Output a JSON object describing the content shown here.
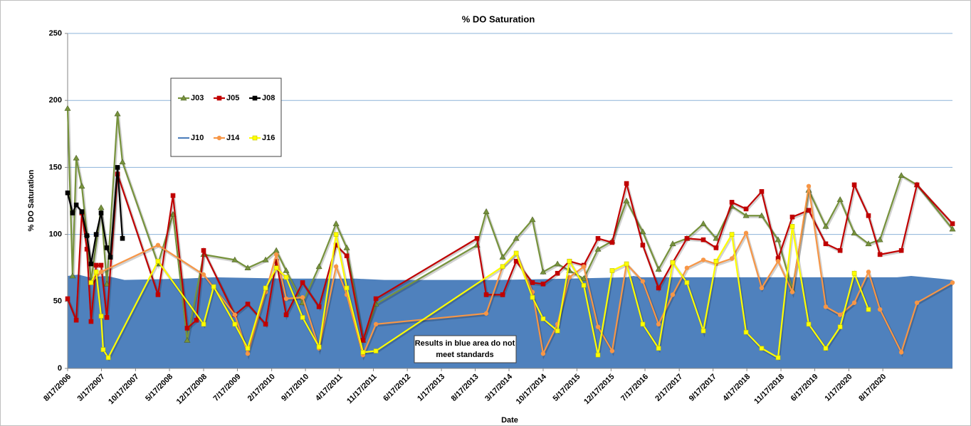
{
  "chart_data": {
    "type": "line",
    "title": "% DO Saturation",
    "y_label": "% DO Saturation",
    "x_label": "Date",
    "ylim": [
      0,
      250
    ],
    "yticks": [
      0,
      50,
      100,
      150,
      200,
      250
    ],
    "grid": true,
    "xlim": [
      38946,
      44497
    ],
    "xticks": [
      {
        "value": 38946,
        "label": "8/17/2006"
      },
      {
        "value": 39158,
        "label": "3/17/2007"
      },
      {
        "value": 39372,
        "label": "10/17/2007"
      },
      {
        "value": 39585,
        "label": "5/17/2008"
      },
      {
        "value": 39799,
        "label": "12/17/2008"
      },
      {
        "value": 40011,
        "label": "7/17/2009"
      },
      {
        "value": 40226,
        "label": "2/17/2010"
      },
      {
        "value": 40438,
        "label": "9/17/2010"
      },
      {
        "value": 40650,
        "label": "4/17/2011"
      },
      {
        "value": 40864,
        "label": "11/17/2011"
      },
      {
        "value": 41077,
        "label": "6/17/2012"
      },
      {
        "value": 41291,
        "label": "1/17/2013"
      },
      {
        "value": 41503,
        "label": "8/17/2013"
      },
      {
        "value": 41715,
        "label": "3/17/2014"
      },
      {
        "value": 41929,
        "label": "10/17/2014"
      },
      {
        "value": 42141,
        "label": "5/17/2015"
      },
      {
        "value": 42355,
        "label": "12/17/2015"
      },
      {
        "value": 42568,
        "label": "7/17/2016"
      },
      {
        "value": 42783,
        "label": "2/17/2017"
      },
      {
        "value": 42995,
        "label": "9/17/2017"
      },
      {
        "value": 43207,
        "label": "4/17/2018"
      },
      {
        "value": 43421,
        "label": "11/17/2018"
      },
      {
        "value": 43633,
        "label": "6/17/2019"
      },
      {
        "value": 43847,
        "label": "1/17/2020"
      },
      {
        "value": 44060,
        "label": "8/17/2020"
      }
    ],
    "standard_area": {
      "color": "#4f81bd",
      "x": [
        38946,
        39013,
        39080,
        39192,
        39303,
        39683,
        39862,
        40308,
        40755,
        40933,
        41648,
        42094,
        42452,
        42496,
        42541,
        42988,
        43434,
        43881,
        44149,
        44238,
        44417,
        44497
      ],
      "values": [
        69,
        70,
        68,
        69,
        66,
        67,
        68,
        67,
        67,
        66,
        66,
        67,
        68,
        69,
        68,
        68,
        68,
        68,
        68,
        69,
        67,
        66
      ]
    },
    "annotation": [
      "Results in blue area do not",
      "meet standards"
    ],
    "series": [
      {
        "name": "J03",
        "color": "#77933c",
        "marker": "triangle",
        "x": [
          38946,
          38977,
          39000,
          39035,
          39067,
          39093,
          39156,
          39192,
          39259,
          39290,
          39513,
          39607,
          39696,
          39799,
          39995,
          40076,
          40188,
          40255,
          40317,
          40420,
          40523,
          40630,
          40697,
          40799,
          40880,
          41514,
          41572,
          41675,
          41760,
          41862,
          41929,
          42019,
          42094,
          42184,
          42273,
          42362,
          42452,
          42554,
          42653,
          42742,
          42831,
          42934,
          43014,
          43113,
          43202,
          43300,
          43403,
          43492,
          43595,
          43702,
          43792,
          43881,
          43970,
          44042,
          44176,
          44274,
          44497
        ],
        "values": [
          194,
          69,
          157,
          136,
          100,
          65,
          120,
          63,
          190,
          154,
          78,
          115,
          21,
          85,
          81,
          75,
          81,
          88,
          73,
          49,
          76,
          108,
          90,
          21,
          48,
          92,
          117,
          83,
          97,
          111,
          72,
          78,
          73,
          67,
          89,
          95,
          125,
          102,
          74,
          93,
          97,
          108,
          97,
          121,
          114,
          114,
          96,
          59,
          133,
          106,
          126,
          101,
          93,
          96,
          144,
          137,
          104
        ]
      },
      {
        "name": "J05",
        "color": "#c00000",
        "marker": "square",
        "x": [
          38946,
          39000,
          39035,
          39067,
          39093,
          39125,
          39156,
          39192,
          39259,
          39513,
          39607,
          39696,
          39754,
          39799,
          39995,
          40076,
          40188,
          40255,
          40317,
          40420,
          40523,
          40630,
          40697,
          40799,
          40880,
          41514,
          41572,
          41675,
          41760,
          41862,
          41929,
          42019,
          42094,
          42184,
          42273,
          42362,
          42452,
          42554,
          42653,
          42742,
          42831,
          42934,
          43014,
          43113,
          43202,
          43300,
          43403,
          43492,
          43595,
          43702,
          43792,
          43881,
          43970,
          44042,
          44176,
          44274,
          44497
        ],
        "values": [
          52,
          36,
          116,
          89,
          35,
          77,
          77,
          38,
          145,
          55,
          129,
          30,
          36,
          88,
          40,
          48,
          33,
          80,
          40,
          64,
          46,
          92,
          84,
          21,
          52,
          97,
          55,
          55,
          80,
          64,
          63,
          71,
          80,
          77,
          97,
          94,
          138,
          92,
          60,
          79,
          97,
          96,
          90,
          124,
          119,
          132,
          82,
          113,
          118,
          93,
          88,
          137,
          114,
          85,
          88,
          137,
          108
        ]
      },
      {
        "name": "J08",
        "color": "#000000",
        "marker": "square",
        "x": [
          38946,
          38977,
          39000,
          39035,
          39067,
          39093,
          39125,
          39156,
          39192,
          39214,
          39259,
          39290
        ],
        "values": [
          131,
          116,
          122,
          117,
          99,
          78,
          100,
          116,
          90,
          83,
          150,
          97
        ]
      },
      {
        "name": "J10",
        "color": "#4f81bd",
        "marker": "none",
        "x": [],
        "values": []
      },
      {
        "name": "J14",
        "color": "#f79646",
        "marker": "circle",
        "x": [
          39093,
          39156,
          39513,
          39799,
          39995,
          40076,
          40188,
          40255,
          40317,
          40420,
          40523,
          40630,
          40697,
          40799,
          40880,
          41572,
          41675,
          41760,
          41862,
          41929,
          42019,
          42094,
          42184,
          42273,
          42362,
          42452,
          42554,
          42653,
          42742,
          42831,
          42934,
          43014,
          43113,
          43202,
          43300,
          43403,
          43492,
          43595,
          43702,
          43792,
          43881,
          43970,
          44042,
          44176,
          44274,
          44497
        ],
        "values": [
          64,
          72,
          92,
          70,
          40,
          11,
          57,
          85,
          52,
          53,
          15,
          76,
          55,
          10,
          33,
          41,
          76,
          86,
          57,
          11,
          33,
          68,
          76,
          31,
          13,
          78,
          65,
          33,
          55,
          75,
          81,
          78,
          82,
          101,
          60,
          80,
          57,
          136,
          46,
          40,
          49,
          72,
          44,
          12,
          49,
          64
        ]
      },
      {
        "name": "J16",
        "color": "#ffff00",
        "marker": "square",
        "x": [
          39093,
          39125,
          39156,
          39169,
          39201,
          39513,
          39799,
          39862,
          39995,
          40076,
          40188,
          40255,
          40317,
          40420,
          40523,
          40630,
          40697,
          40799,
          40880,
          41675,
          41760,
          41862,
          41929,
          42019,
          42094,
          42184,
          42273,
          42362,
          42452,
          42554,
          42653,
          42742,
          42831,
          42934,
          43014,
          43113,
          43202,
          43300,
          43403,
          43492,
          43595,
          43702,
          43792,
          43881,
          43970
        ],
        "values": [
          64,
          72,
          39,
          14,
          8,
          80,
          33,
          61,
          33,
          15,
          60,
          75,
          68,
          38,
          16,
          100,
          60,
          12,
          13,
          76,
          86,
          53,
          37,
          28,
          80,
          62,
          10,
          73,
          78,
          33,
          15,
          79,
          64,
          28,
          80,
          100,
          27,
          15,
          8,
          106,
          33,
          15,
          31,
          71,
          44
        ]
      }
    ]
  }
}
